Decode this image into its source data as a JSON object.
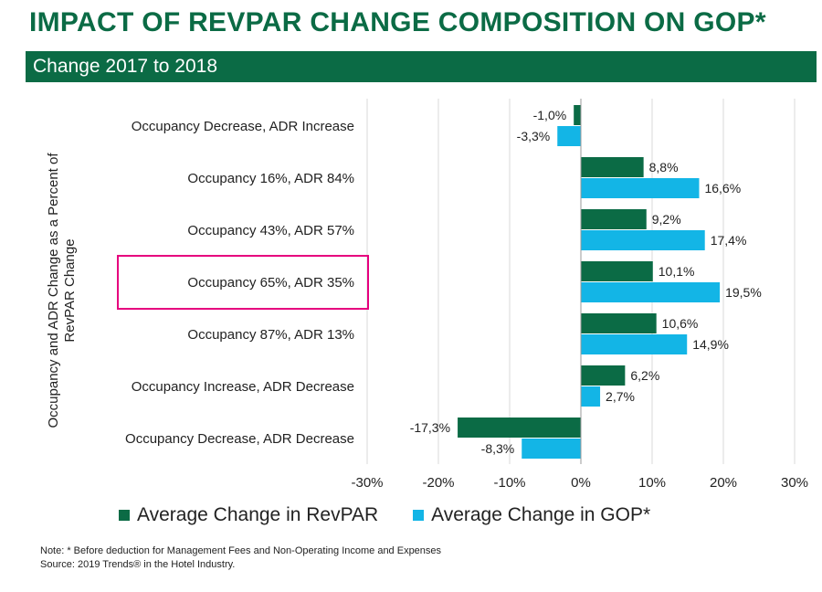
{
  "title": "IMPACT OF REVPAR CHANGE COMPOSITION ON GOP*",
  "subtitle": "Change 2017 to 2018",
  "colors": {
    "revpar": "#0b6b45",
    "gop": "#13b5e6",
    "highlight": "#e6007e",
    "grid": "#d9d9d9"
  },
  "chart_data": {
    "type": "bar",
    "orientation": "horizontal",
    "categories": [
      "Occupancy Decrease, ADR Increase",
      "Occupancy 16%, ADR 84%",
      "Occupancy 43%, ADR 57%",
      "Occupancy 65%, ADR 35%",
      "Occupancy 87%, ADR 13%",
      "Occupancy Increase, ADR Decrease",
      "Occupancy Decrease, ADR Decrease"
    ],
    "series": [
      {
        "name": "Average Change in RevPAR",
        "values": [
          -1.0,
          8.8,
          9.2,
          10.1,
          10.6,
          6.2,
          -17.3
        ],
        "labels": [
          "-1,0%",
          "8,8%",
          "9,2%",
          "10,1%",
          "10,6%",
          "6,2%",
          "-17,3%"
        ]
      },
      {
        "name": "Average Change in GOP*",
        "values": [
          -3.3,
          16.6,
          17.4,
          19.5,
          14.9,
          2.7,
          -8.3
        ],
        "labels": [
          "-3,3%",
          "16,6%",
          "17,4%",
          "19,5%",
          "14,9%",
          "2,7%",
          "-8,3%"
        ]
      }
    ],
    "xlim": [
      -30,
      30
    ],
    "xticks": [
      -30,
      -20,
      -10,
      0,
      10,
      20,
      30
    ],
    "xtick_labels": [
      "-30%",
      "-20%",
      "-10%",
      "0%",
      "10%",
      "20%",
      "30%"
    ],
    "ylabel": "Occupancy and ADR Change as a Percent of RevPAR Change",
    "ylabel_lines": [
      "Occupancy and ADR Change as a Percent of",
      "RevPAR Change"
    ],
    "highlighted_category": "Occupancy 65%, ADR 35%",
    "grid": "vertical",
    "legend_position": "bottom"
  },
  "notes": [
    "Note: * Before deduction for Management Fees and Non-Operating Income and Expenses",
    "Source: 2019 Trends® in the Hotel Industry."
  ]
}
